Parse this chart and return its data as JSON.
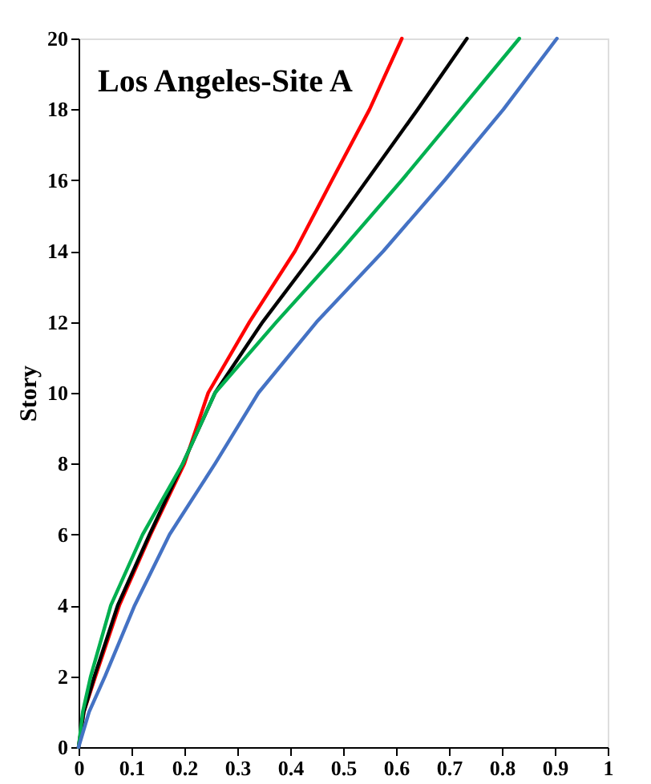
{
  "chart_data": {
    "type": "line",
    "title": "Los Angeles-Site A",
    "ylabel": "Story",
    "series": [
      {
        "color": "#ff0000",
        "x": [
          0,
          0.01,
          0.032,
          0.077,
          0.136,
          0.2,
          0.245,
          0.323,
          0.409,
          0.479,
          0.55,
          0.611
        ],
        "values": [
          0,
          1,
          2,
          4,
          6,
          8,
          10,
          12,
          14,
          16,
          18,
          20
        ]
      },
      {
        "color": "#000000",
        "x": [
          0,
          0.01,
          0.03,
          0.074,
          0.134,
          0.197,
          0.258,
          0.348,
          0.449,
          0.545,
          0.641,
          0.734
        ],
        "values": [
          0,
          1,
          2,
          4,
          6,
          8,
          10,
          12,
          14,
          16,
          18,
          20
        ]
      },
      {
        "color": "#00b050",
        "x": [
          0,
          0.008,
          0.023,
          0.061,
          0.121,
          0.197,
          0.258,
          0.374,
          0.495,
          0.611,
          0.722,
          0.833
        ],
        "values": [
          0,
          1,
          2,
          4,
          6,
          8,
          10,
          12,
          14,
          16,
          18,
          20
        ]
      },
      {
        "color": "#4472c4",
        "x": [
          0,
          0.02,
          0.05,
          0.106,
          0.172,
          0.258,
          0.34,
          0.45,
          0.576,
          0.692,
          0.803,
          0.904
        ],
        "values": [
          0,
          1,
          2,
          4,
          6,
          8,
          10,
          12,
          14,
          16,
          18,
          20
        ]
      }
    ],
    "xlim": [
      0,
      1
    ],
    "xticks": [
      0,
      0.1,
      0.2,
      0.3,
      0.4,
      0.5,
      0.6,
      0.7,
      0.8,
      0.9,
      1
    ],
    "ylim": [
      0,
      20
    ],
    "yticks": [
      0,
      2,
      4,
      6,
      8,
      10,
      12,
      14,
      16,
      18,
      20
    ],
    "grid": false,
    "legend": false,
    "marker": "none",
    "line_style": "solid"
  }
}
